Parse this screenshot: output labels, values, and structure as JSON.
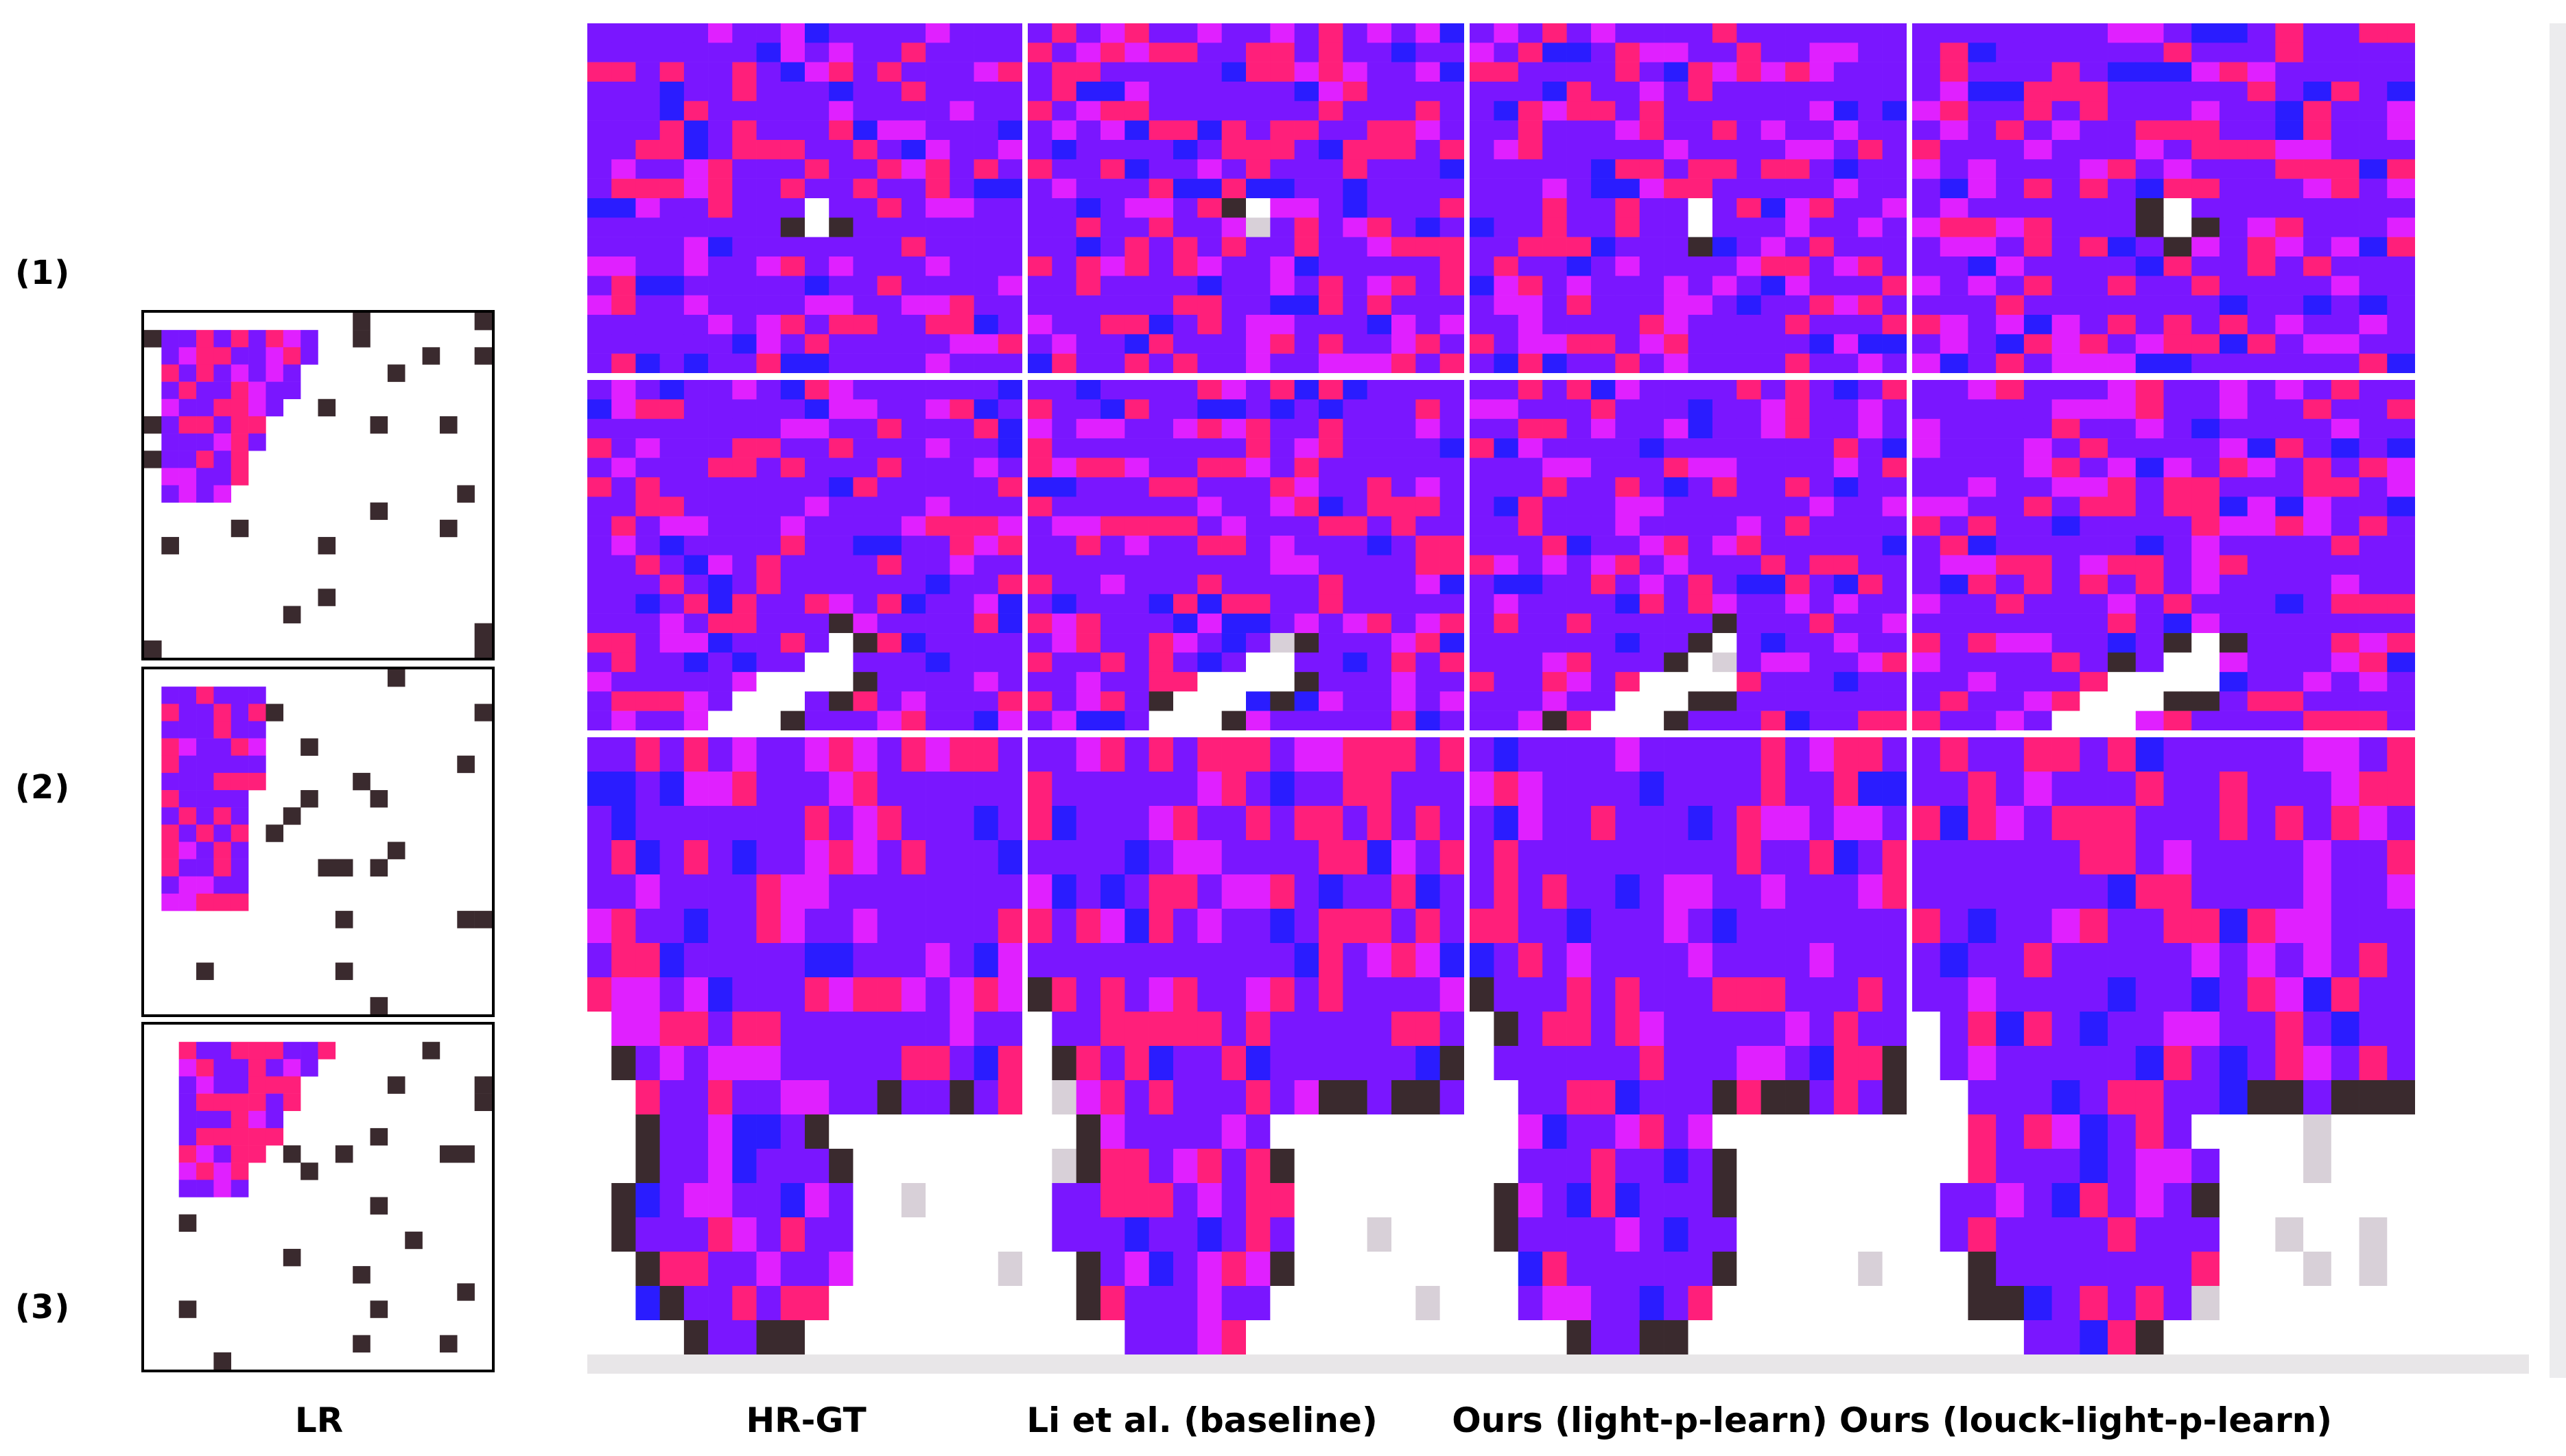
{
  "figure": {
    "rows": [
      {
        "label": "(1)"
      },
      {
        "label": "(2)"
      },
      {
        "label": "(3)"
      }
    ],
    "columns": [
      {
        "label": "LR"
      },
      {
        "label": "HR-GT"
      },
      {
        "label": "Li et al. (baseline)"
      },
      {
        "label": "Ours (light-p-learn)"
      },
      {
        "label": "Ours (louck-light-p-learn)"
      }
    ],
    "colors": {
      "violet": "#7a16ff",
      "blue": "#2a1cff",
      "magenta": "#e020ff",
      "pink": "#ff1f7a",
      "dark": "#3a2a2e",
      "white": "#ffffff"
    }
  }
}
